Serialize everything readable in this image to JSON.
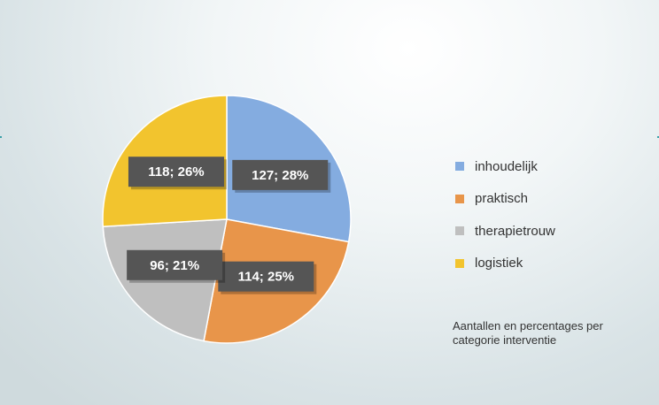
{
  "chart_data": {
    "type": "pie",
    "title": "",
    "categories": [
      "inhoudelijk",
      "praktisch",
      "therapietrouw",
      "logistiek"
    ],
    "values": [
      127,
      114,
      96,
      118
    ],
    "percentages": [
      28,
      25,
      21,
      26
    ],
    "data_labels": [
      "127; 28%",
      "114; 25%",
      "96; 21%",
      "118; 26%"
    ],
    "colors": [
      "#84ace0",
      "#e8954a",
      "#bfbfbf",
      "#f2c42e"
    ],
    "legend_position": "right",
    "caption": "Aantallen en percentages per categorie interventie"
  },
  "legend": {
    "items": [
      {
        "label": "inhoudelijk",
        "color": "#84ace0"
      },
      {
        "label": "praktisch",
        "color": "#e8954a"
      },
      {
        "label": "therapietrouw",
        "color": "#bfbfbf"
      },
      {
        "label": "logistiek",
        "color": "#f2c42e"
      }
    ]
  },
  "label_box_color": "#555555"
}
